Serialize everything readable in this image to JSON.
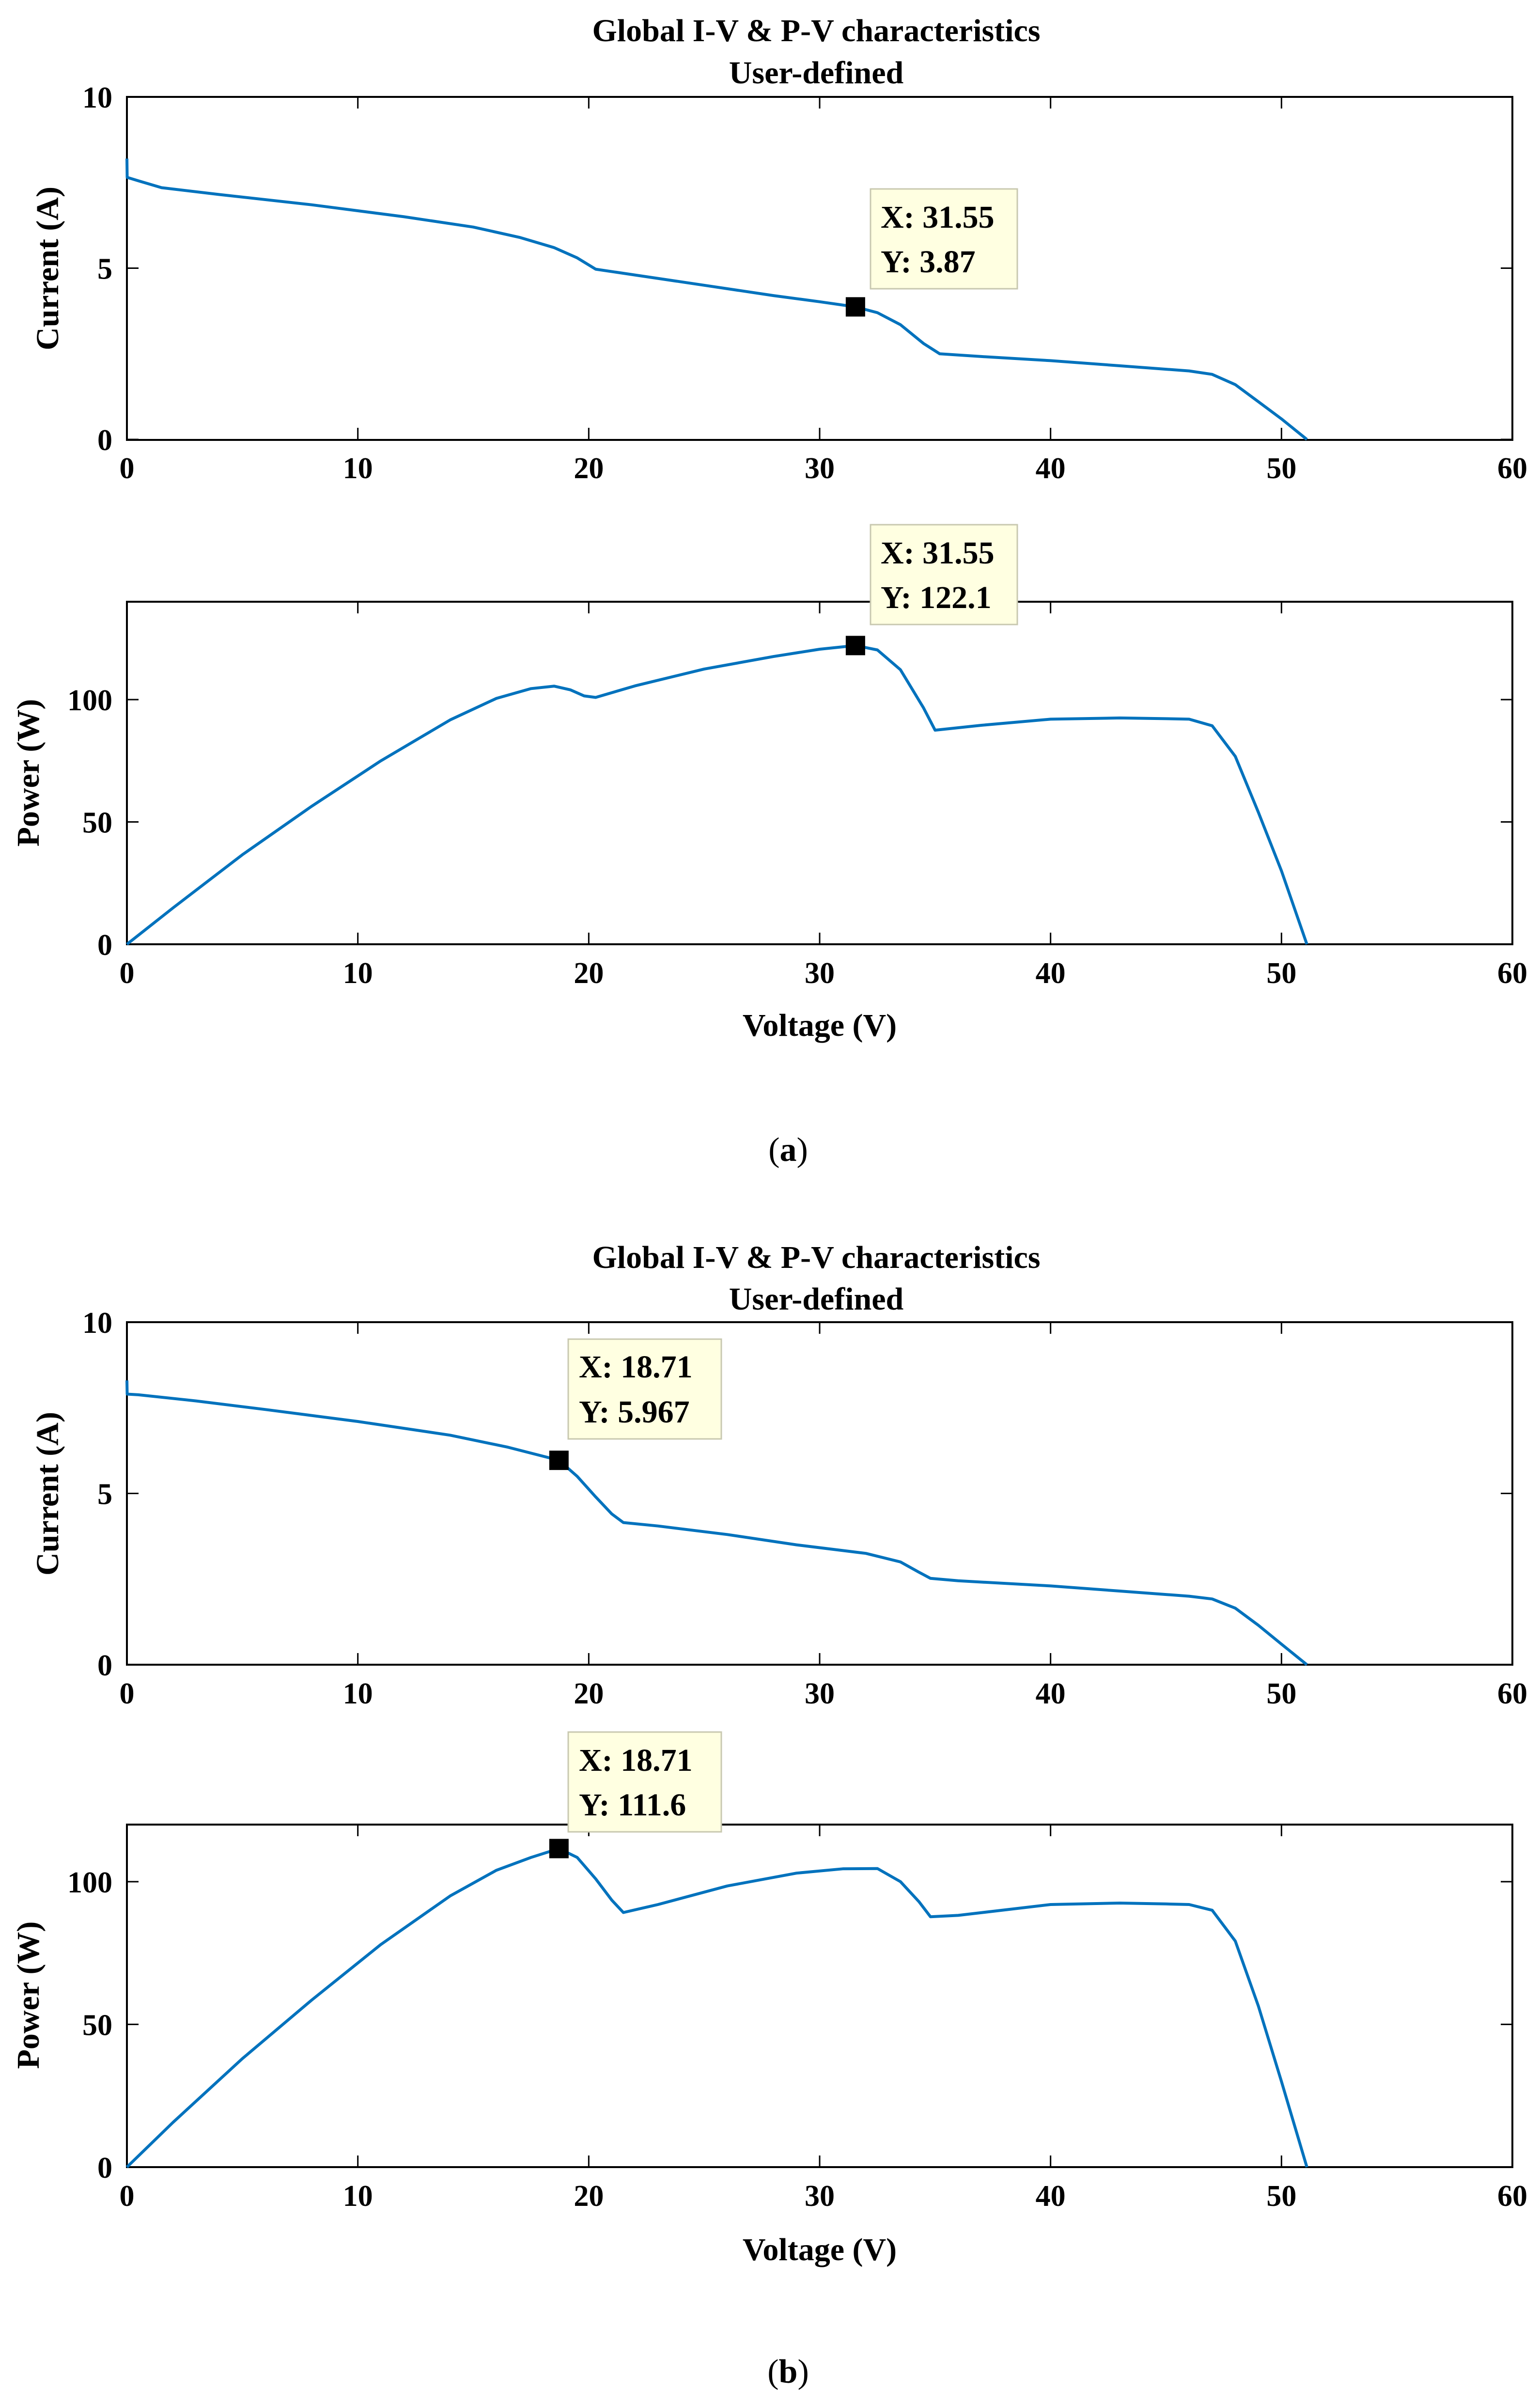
{
  "colors": {
    "line": "#0072BD",
    "tip_fill": "#FFFFE1",
    "tip_border": "#C8C8B0",
    "marker": "#000000"
  },
  "figures": [
    {
      "caption_open": "(",
      "caption_letter": "a",
      "caption_close": ")",
      "title": "Global I-V & P-V characteristics",
      "subtitle": "User-defined",
      "xlabel": "Voltage (V)",
      "xlim": [
        0,
        60
      ],
      "xticks": [
        0,
        10,
        20,
        30,
        40,
        50,
        60
      ],
      "iv": {
        "ylabel": "Current (A)",
        "ylim": [
          0,
          10
        ],
        "yticks": [
          0,
          5,
          10
        ],
        "x": [
          0,
          0.01,
          0.5,
          1.5,
          4,
          8,
          12,
          15,
          17,
          18.5,
          19.5,
          20.3,
          22,
          25,
          28,
          30,
          31.55,
          32.5,
          33.5,
          34.5,
          35.2,
          37,
          40,
          43,
          45,
          46,
          47,
          48,
          49,
          50,
          51.1
        ],
        "y": [
          8.2,
          7.65,
          7.55,
          7.35,
          7.15,
          6.85,
          6.5,
          6.2,
          5.9,
          5.6,
          5.3,
          4.97,
          4.8,
          4.5,
          4.2,
          4.02,
          3.87,
          3.7,
          3.35,
          2.8,
          2.5,
          2.42,
          2.3,
          2.15,
          2.05,
          2.0,
          1.9,
          1.6,
          1.1,
          0.6,
          0.0
        ],
        "marker": {
          "x": 31.55,
          "y": 3.87
        },
        "tip_x": "X: 31.55",
        "tip_y": "Y: 3.87"
      },
      "pv": {
        "ylabel": "Power (W)",
        "ylim": [
          0,
          140
        ],
        "yticks": [
          0,
          50,
          100
        ],
        "x": [
          0,
          2,
          5,
          8,
          11,
          14,
          16,
          17.5,
          18.5,
          19.2,
          19.8,
          20.3,
          22,
          25,
          28,
          30,
          31.55,
          32.5,
          33.5,
          34.5,
          35,
          37,
          40,
          43,
          45,
          46,
          47,
          48,
          49,
          50,
          51.1
        ],
        "y": [
          0,
          14.9,
          36.6,
          56.4,
          75,
          91.7,
          100.5,
          104.5,
          105.5,
          104,
          101.5,
          100.9,
          105.6,
          112.5,
          117.6,
          120.6,
          122.1,
          120.3,
          112.2,
          96.6,
          87.5,
          89.5,
          92,
          92.5,
          92.2,
          92,
          89.3,
          76.8,
          53.9,
          30,
          0
        ],
        "marker": {
          "x": 31.55,
          "y": 122.1
        },
        "tip_x": "X: 31.55",
        "tip_y": "Y: 122.1"
      }
    },
    {
      "caption_open": "(",
      "caption_letter": "b",
      "caption_close": ")",
      "title": "Global I-V & P-V characteristics",
      "subtitle": "User-defined",
      "xlabel": "Voltage (V)",
      "xlim": [
        0,
        60
      ],
      "xticks": [
        0,
        10,
        20,
        30,
        40,
        50,
        60
      ],
      "iv": {
        "ylabel": "Current (A)",
        "ylim": [
          0,
          10
        ],
        "yticks": [
          0,
          5,
          10
        ],
        "x": [
          0,
          0.01,
          0.5,
          3,
          6,
          10,
          14,
          16.5,
          18.71,
          19.5,
          20.3,
          21,
          21.5,
          23,
          26,
          29,
          32,
          33.5,
          34.3,
          34.8,
          36,
          40,
          43,
          45,
          46,
          47,
          48,
          49,
          50,
          51.1
        ],
        "y": [
          8.3,
          7.9,
          7.88,
          7.7,
          7.45,
          7.1,
          6.7,
          6.35,
          5.967,
          5.5,
          4.9,
          4.4,
          4.15,
          4.05,
          3.8,
          3.5,
          3.25,
          3.0,
          2.7,
          2.52,
          2.45,
          2.3,
          2.15,
          2.05,
          2.0,
          1.92,
          1.65,
          1.15,
          0.6,
          0.0
        ],
        "marker": {
          "x": 18.71,
          "y": 5.967
        },
        "tip_x": "X: 18.71",
        "tip_y": "Y: 5.967"
      },
      "pv": {
        "ylabel": "Power (W)",
        "ylim": [
          0,
          120
        ],
        "yticks": [
          0,
          50,
          100
        ],
        "x": [
          0,
          2,
          5,
          8,
          11,
          14,
          16,
          17.5,
          18.71,
          19.5,
          20.3,
          21,
          21.5,
          23,
          26,
          29,
          31,
          32.5,
          33.5,
          34.3,
          34.8,
          36,
          40,
          43,
          45,
          46,
          47,
          48,
          49,
          50,
          51.1
        ],
        "y": [
          0,
          15.7,
          38,
          58.5,
          78,
          95,
          104,
          108.5,
          111.6,
          108.5,
          101,
          93.5,
          89.2,
          92,
          98.5,
          103,
          104.5,
          104.6,
          100,
          93,
          87.7,
          88.2,
          92,
          92.5,
          92.2,
          92,
          90,
          79.2,
          56.4,
          30,
          0
        ],
        "marker": {
          "x": 18.71,
          "y": 111.6
        },
        "tip_x": "X: 18.71",
        "tip_y": "Y: 111.6"
      }
    }
  ]
}
